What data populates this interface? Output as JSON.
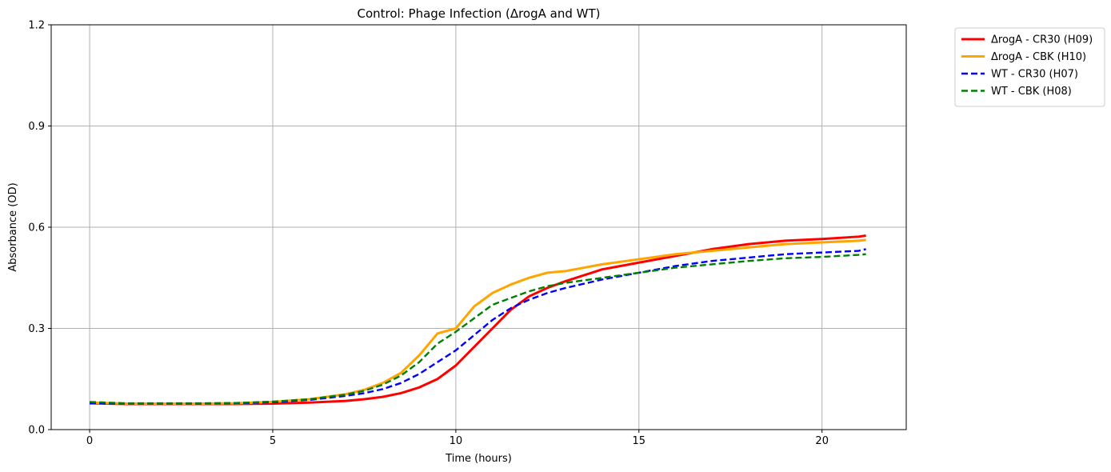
{
  "chart_data": {
    "type": "line",
    "title": "Control: Phage Infection (ΔrogA and WT)",
    "xlabel": "Time (hours)",
    "ylabel": "Absorbance (OD)",
    "xlim": [
      -1.05,
      22.3
    ],
    "ylim": [
      0.0,
      1.2
    ],
    "xticks": [
      0,
      5,
      10,
      15,
      20
    ],
    "yticks": [
      0.0,
      0.3,
      0.6,
      0.9,
      1.2
    ],
    "xtick_labels": [
      "0",
      "5",
      "10",
      "15",
      "20"
    ],
    "ytick_labels": [
      "0.0",
      "0.3",
      "0.6",
      "0.9",
      "1.2"
    ],
    "grid": true,
    "legend_position": "outside-top-right",
    "x": [
      0,
      1,
      2,
      3,
      4,
      5,
      6,
      7,
      7.5,
      8,
      8.5,
      9,
      9.5,
      10,
      10.5,
      11,
      11.5,
      12,
      12.5,
      13,
      14,
      15,
      16,
      17,
      18,
      19,
      20,
      21,
      21.2
    ],
    "series": [
      {
        "name": "ΔrogA - CR30 (H09)",
        "color": "#ff0000",
        "style": "solid",
        "values": [
          0.078,
          0.076,
          0.076,
          0.076,
          0.076,
          0.077,
          0.08,
          0.085,
          0.09,
          0.097,
          0.108,
          0.125,
          0.15,
          0.19,
          0.245,
          0.3,
          0.355,
          0.395,
          0.42,
          0.44,
          0.475,
          0.495,
          0.515,
          0.535,
          0.55,
          0.56,
          0.565,
          0.572,
          0.575
        ]
      },
      {
        "name": "ΔrogA - CBK (H10)",
        "color": "#ffa500",
        "style": "solid",
        "values": [
          0.08,
          0.077,
          0.077,
          0.077,
          0.078,
          0.082,
          0.09,
          0.105,
          0.118,
          0.138,
          0.168,
          0.22,
          0.285,
          0.3,
          0.365,
          0.405,
          0.43,
          0.45,
          0.465,
          0.47,
          0.49,
          0.505,
          0.52,
          0.53,
          0.54,
          0.55,
          0.555,
          0.56,
          0.562
        ]
      },
      {
        "name": "WT - CR30 (H07)",
        "color": "#0000ff",
        "style": "dashed",
        "values": [
          0.078,
          0.077,
          0.077,
          0.077,
          0.078,
          0.081,
          0.088,
          0.1,
          0.108,
          0.12,
          0.138,
          0.165,
          0.2,
          0.235,
          0.28,
          0.325,
          0.36,
          0.385,
          0.405,
          0.42,
          0.445,
          0.465,
          0.485,
          0.5,
          0.51,
          0.52,
          0.525,
          0.53,
          0.535
        ]
      },
      {
        "name": "WT - CBK (H08)",
        "color": "#008000",
        "style": "dashed",
        "values": [
          0.082,
          0.078,
          0.078,
          0.078,
          0.079,
          0.083,
          0.09,
          0.104,
          0.115,
          0.133,
          0.16,
          0.2,
          0.255,
          0.29,
          0.33,
          0.37,
          0.39,
          0.41,
          0.425,
          0.435,
          0.45,
          0.465,
          0.48,
          0.49,
          0.5,
          0.508,
          0.512,
          0.518,
          0.52
        ]
      }
    ]
  }
}
